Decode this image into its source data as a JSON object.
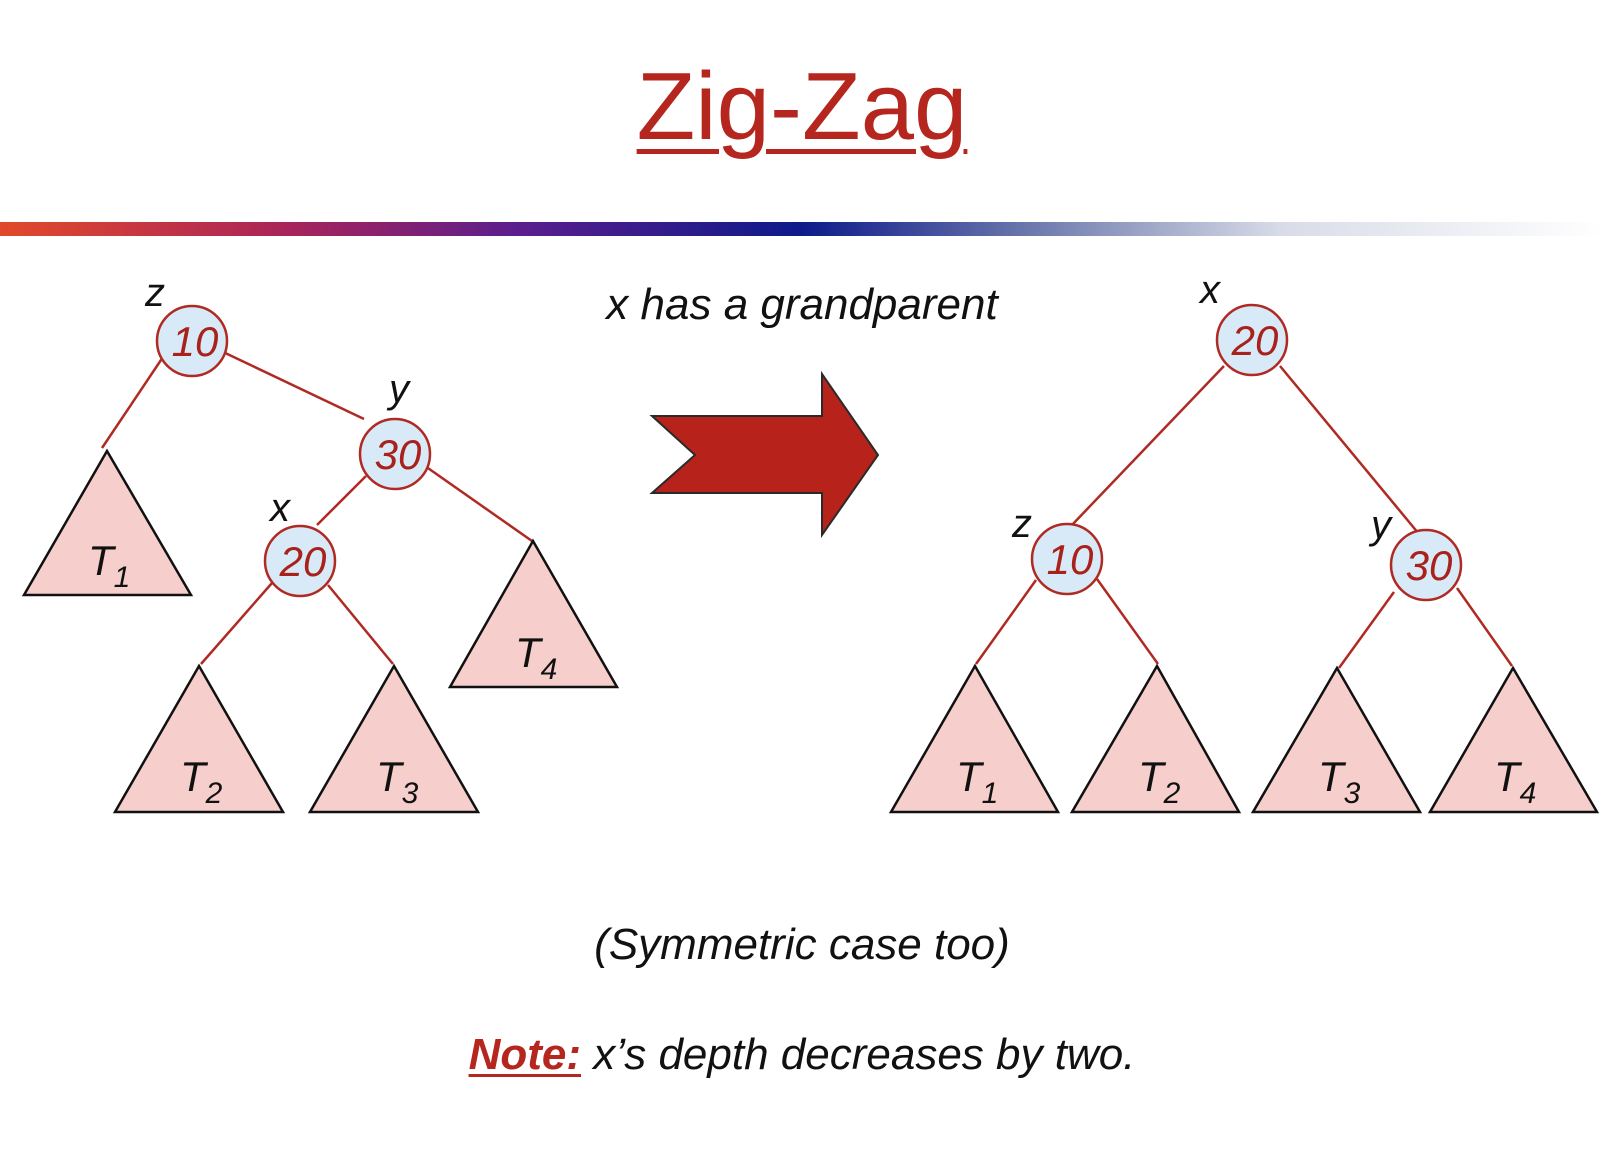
{
  "title": "Zig-Zag",
  "condition": "x has a grandparent",
  "symmetric_note": "(Symmetric case too)",
  "note": {
    "label": "Note:",
    "text": "x’s depth decreases by two."
  },
  "colors": {
    "accent": "#b5261e",
    "node_fill": "#d8e9f7",
    "subtree_fill": "#f6cfcc",
    "edge": "#b02a24",
    "arrow": "#b7221b"
  },
  "before": {
    "nodes": [
      {
        "id": "z",
        "var": "z",
        "key": "10"
      },
      {
        "id": "y",
        "var": "y",
        "key": "30"
      },
      {
        "id": "x",
        "var": "x",
        "key": "20"
      }
    ],
    "subtrees": [
      {
        "name": "T",
        "sub": "1"
      },
      {
        "name": "T",
        "sub": "2"
      },
      {
        "name": "T",
        "sub": "3"
      },
      {
        "name": "T",
        "sub": "4"
      }
    ]
  },
  "after": {
    "nodes": [
      {
        "id": "x",
        "var": "x",
        "key": "20"
      },
      {
        "id": "z",
        "var": "z",
        "key": "10"
      },
      {
        "id": "y",
        "var": "y",
        "key": "30"
      }
    ],
    "subtrees": [
      {
        "name": "T",
        "sub": "1"
      },
      {
        "name": "T",
        "sub": "2"
      },
      {
        "name": "T",
        "sub": "3"
      },
      {
        "name": "T",
        "sub": "4"
      }
    ]
  },
  "arrow_icon": "right-arrow-icon"
}
